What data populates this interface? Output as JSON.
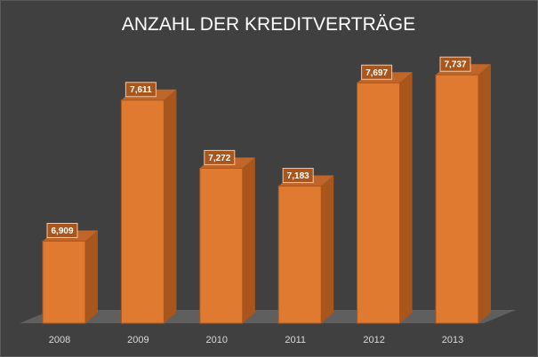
{
  "chart_data": {
    "type": "bar",
    "title": "ANZAHL DER KREDITVERTRÄGE",
    "categories": [
      "2008",
      "2009",
      "2010",
      "2011",
      "2012",
      "2013"
    ],
    "series": [
      {
        "values": [
          6909,
          7611,
          7272,
          7183,
          7697,
          7737
        ],
        "labels": [
          "6,909",
          "7,611",
          "7,272",
          "7,183",
          "7,697",
          "7,737"
        ]
      }
    ],
    "ylim": [
      6500,
      7800
    ],
    "xlabel": "",
    "ylabel": "",
    "grid": false,
    "legend": "none",
    "colors": {
      "background": "#404040",
      "bar_front": "#E07A30",
      "bar_side": "#A9561D",
      "bar_top": "#C0662A",
      "floor": "#5F5F5F",
      "label_box": "#A9561D"
    }
  }
}
